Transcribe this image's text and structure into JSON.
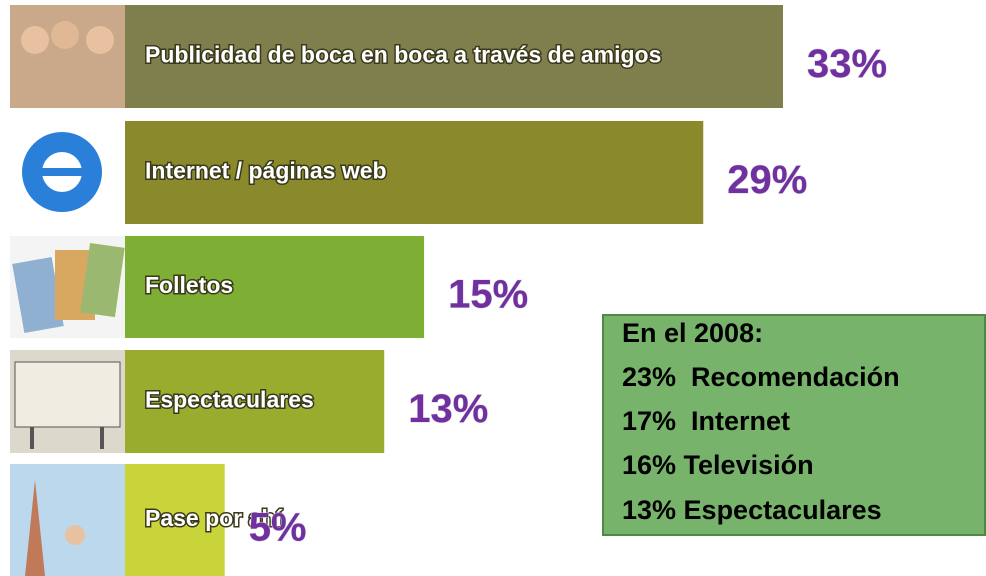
{
  "chart_data": {
    "type": "bar",
    "orientation": "horizontal",
    "categories": [
      "Publicidad de boca en boca a través de amigos",
      "Internet / páginas web",
      "Folletos",
      "Espectaculares",
      "Pase por ahí"
    ],
    "values": [
      33,
      29,
      15,
      13,
      5
    ],
    "value_labels": [
      "33%",
      "29%",
      "15%",
      "13%",
      "5%"
    ],
    "colors": [
      "#7f7f4d",
      "#8a8a2c",
      "#7fae35",
      "#9aac2e",
      "#c9d43a"
    ],
    "annotation": {
      "title": "En el 2008:",
      "lines": [
        "23%  Recomendación",
        "17%  Internet",
        "16% Televisión",
        "13% Espectaculares"
      ]
    }
  }
}
